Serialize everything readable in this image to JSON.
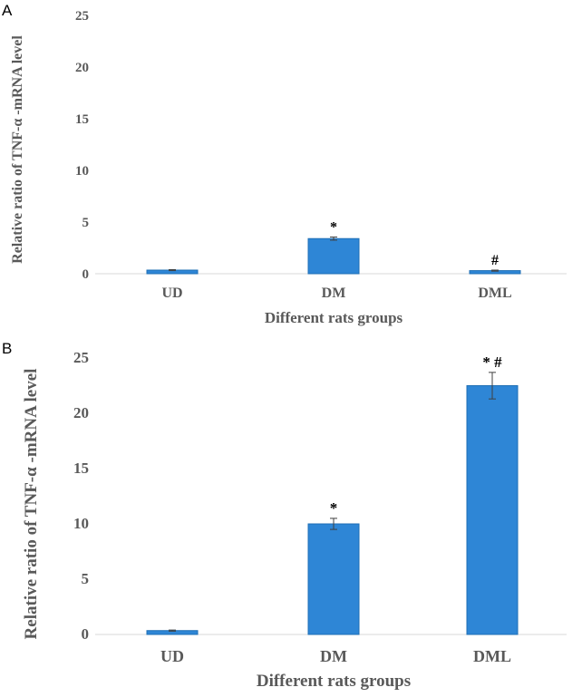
{
  "chart_data": [
    {
      "type": "bar",
      "panel_label": "A",
      "categories": [
        "UD",
        "DM",
        "DML"
      ],
      "values": [
        0.35,
        3.4,
        0.3
      ],
      "errors": [
        0.05,
        0.15,
        0.05
      ],
      "annotations": [
        "",
        "*",
        "#"
      ],
      "xlabel": "Different rats groups",
      "ylabel": "Relative ratio of TNF-α   -mRNA level",
      "ylim": [
        0,
        25
      ],
      "yticks": [
        0,
        5,
        10,
        15,
        20,
        25
      ],
      "color": "#2e86d6"
    },
    {
      "type": "bar",
      "panel_label": "B",
      "categories": [
        "UD",
        "DM",
        "DML"
      ],
      "values": [
        0.35,
        10.0,
        22.5
      ],
      "errors": [
        0.05,
        0.5,
        1.2
      ],
      "annotations": [
        "",
        "*",
        "* #"
      ],
      "xlabel": "Different rats groups",
      "ylabel": "Relative ratio of TNF-α   -mRNA level",
      "ylim": [
        0,
        25
      ],
      "yticks": [
        0,
        5,
        10,
        15,
        20,
        25
      ],
      "color": "#2e86d6"
    }
  ]
}
